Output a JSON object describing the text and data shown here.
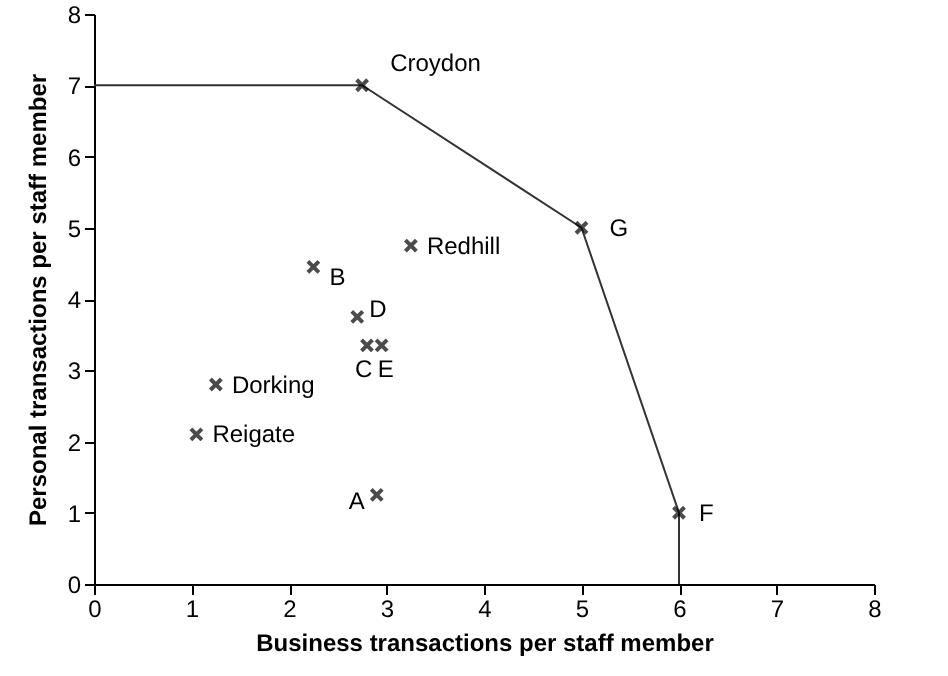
{
  "chart_data": {
    "type": "scatter",
    "xlabel": "Business transactions per staff member",
    "ylabel": "Personal transactions per staff member",
    "xlim": [
      0,
      8
    ],
    "ylim": [
      0,
      8
    ],
    "xticks": [
      0,
      1,
      2,
      3,
      4,
      5,
      6,
      7,
      8
    ],
    "yticks": [
      0,
      1,
      2,
      3,
      4,
      5,
      6,
      7,
      8
    ],
    "grid": false,
    "series": [
      {
        "type": "line",
        "color": "#333333",
        "x": [
          0,
          2.75,
          5,
          6,
          6
        ],
        "values": [
          7,
          7,
          5,
          1,
          0
        ],
        "marker": "none",
        "line_style": "solid"
      },
      {
        "color": "#000000",
        "marker": "cross",
        "x": [
          2.75,
          5,
          6,
          3.25,
          2.25,
          2.7,
          2.8,
          2.95,
          1.25,
          1.05,
          2.9
        ],
        "values": [
          7,
          5,
          1,
          4.75,
          4.45,
          3.75,
          3.35,
          3.35,
          2.8,
          2.1,
          1.25
        ]
      }
    ],
    "annotations": [
      {
        "text": "Croydon",
        "x": 2.75,
        "y": 7
      },
      {
        "text": "G",
        "x": 5,
        "y": 5
      },
      {
        "text": "F",
        "x": 6,
        "y": 1
      },
      {
        "text": "Redhill",
        "x": 3.25,
        "y": 4.75
      },
      {
        "text": "B",
        "x": 2.25,
        "y": 4.45
      },
      {
        "text": "D",
        "x": 2.7,
        "y": 3.75
      },
      {
        "text": "C",
        "x": 2.8,
        "y": 3.35
      },
      {
        "text": "E",
        "x": 2.95,
        "y": 3.35
      },
      {
        "text": "Dorking",
        "x": 1.25,
        "y": 2.8
      },
      {
        "text": "Reigate",
        "x": 1.05,
        "y": 2.1
      },
      {
        "text": "A",
        "x": 2.9,
        "y": 1.25
      }
    ]
  }
}
